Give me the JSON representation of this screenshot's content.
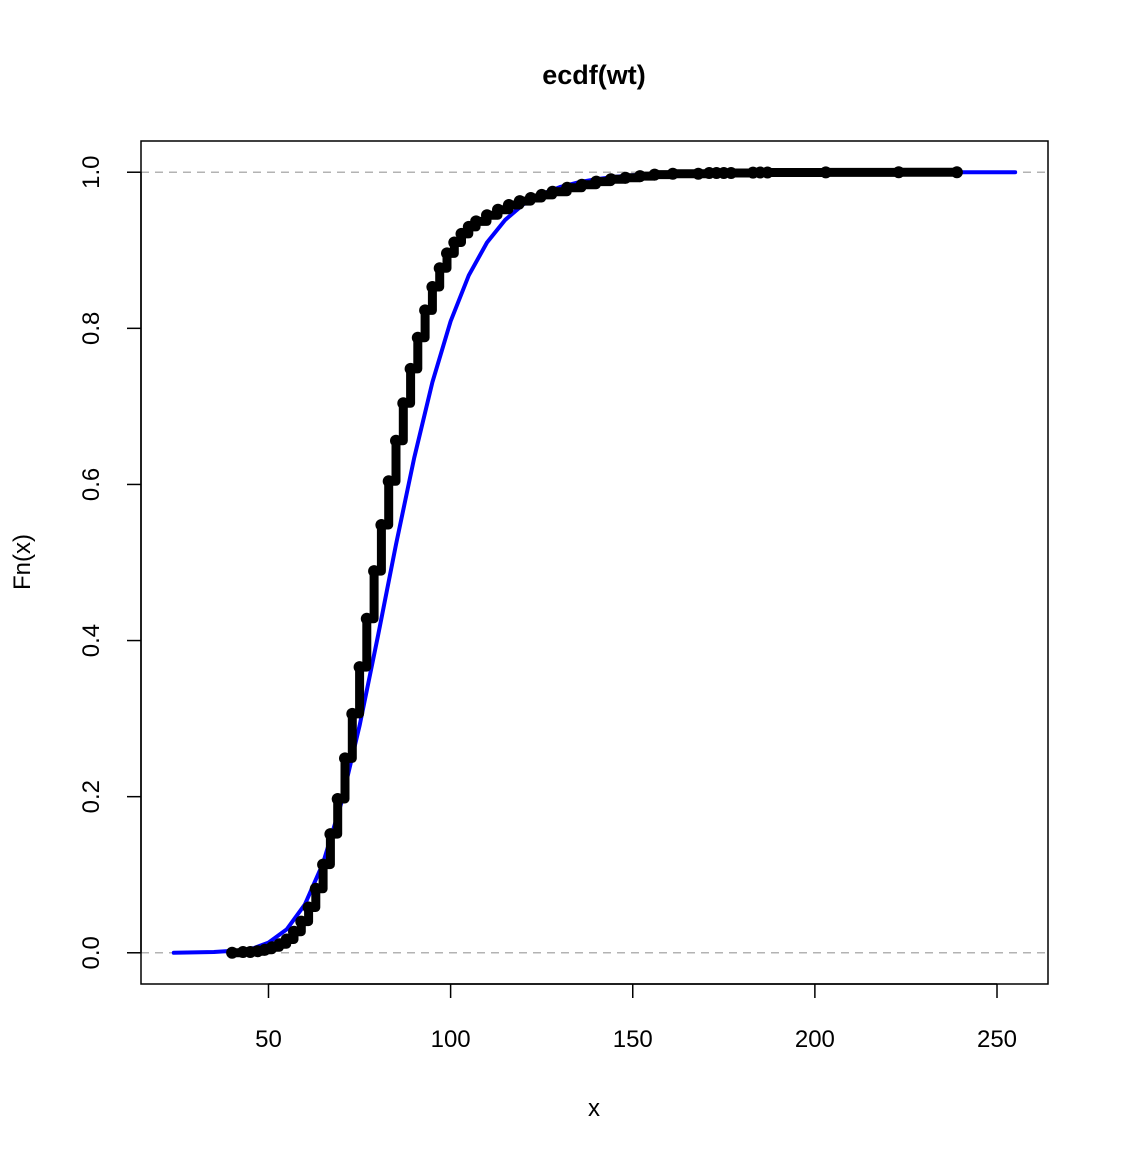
{
  "chart_data": {
    "type": "line",
    "title": "ecdf(wt)",
    "xlabel": "x",
    "ylabel": "Fn(x)",
    "xlim": [
      15,
      264
    ],
    "ylim": [
      -0.04,
      1.04
    ],
    "x_ticks": [
      50,
      100,
      150,
      200,
      250
    ],
    "x_tick_labels": [
      "50",
      "100",
      "150",
      "200",
      "250"
    ],
    "y_ticks": [
      0.0,
      0.2,
      0.4,
      0.6,
      0.8,
      1.0
    ],
    "y_tick_labels": [
      "0.0",
      "0.2",
      "0.4",
      "0.6",
      "0.8",
      "1.0"
    ],
    "reference_lines": [
      0,
      1
    ],
    "grid": false,
    "legend": "none",
    "colors": {
      "ecdf_points": "#000000",
      "fitted_curve": "#0000ff",
      "reference_lines": "#b3b3b3"
    },
    "series": [
      {
        "kind": "ecdf_points",
        "x": [
          40,
          43,
          45,
          47,
          49,
          51,
          53,
          55,
          57,
          59,
          61,
          63,
          65,
          67,
          69,
          71,
          73,
          75,
          77,
          79,
          81,
          83,
          85,
          87,
          89,
          91,
          93,
          95,
          97,
          99,
          101,
          103,
          105,
          107,
          110,
          113,
          116,
          119,
          122,
          125,
          128,
          132,
          136,
          140,
          144,
          148,
          152,
          156,
          161,
          168,
          171,
          173,
          175,
          177,
          183,
          185,
          187,
          203,
          223,
          239
        ],
        "y": [
          0.0,
          0.001,
          0.001,
          0.002,
          0.004,
          0.007,
          0.011,
          0.017,
          0.027,
          0.04,
          0.058,
          0.082,
          0.113,
          0.152,
          0.197,
          0.249,
          0.306,
          0.366,
          0.428,
          0.489,
          0.548,
          0.604,
          0.656,
          0.704,
          0.748,
          0.788,
          0.823,
          0.853,
          0.877,
          0.896,
          0.91,
          0.921,
          0.93,
          0.937,
          0.945,
          0.952,
          0.958,
          0.963,
          0.967,
          0.971,
          0.975,
          0.98,
          0.984,
          0.988,
          0.991,
          0.993,
          0.995,
          0.997,
          0.998,
          0.998,
          0.999,
          0.999,
          0.999,
          0.999,
          0.9995,
          0.9996,
          0.9997,
          0.9998,
          0.9999,
          1.0
        ]
      },
      {
        "kind": "fitted_curve",
        "x": [
          24,
          35,
          42,
          46,
          50,
          55,
          60,
          65,
          70,
          75,
          80,
          85,
          90,
          95,
          100,
          105,
          110,
          115,
          120,
          125,
          130,
          135,
          140,
          145,
          150,
          160,
          170,
          180,
          200,
          220,
          240,
          255
        ],
        "y": [
          0.0,
          0.001,
          0.003,
          0.006,
          0.013,
          0.03,
          0.062,
          0.115,
          0.192,
          0.291,
          0.405,
          0.523,
          0.634,
          0.731,
          0.809,
          0.868,
          0.91,
          0.939,
          0.959,
          0.972,
          0.981,
          0.987,
          0.991,
          0.994,
          0.996,
          0.998,
          0.999,
          0.9995,
          0.9999,
          1.0,
          1.0,
          1.0
        ]
      }
    ]
  }
}
